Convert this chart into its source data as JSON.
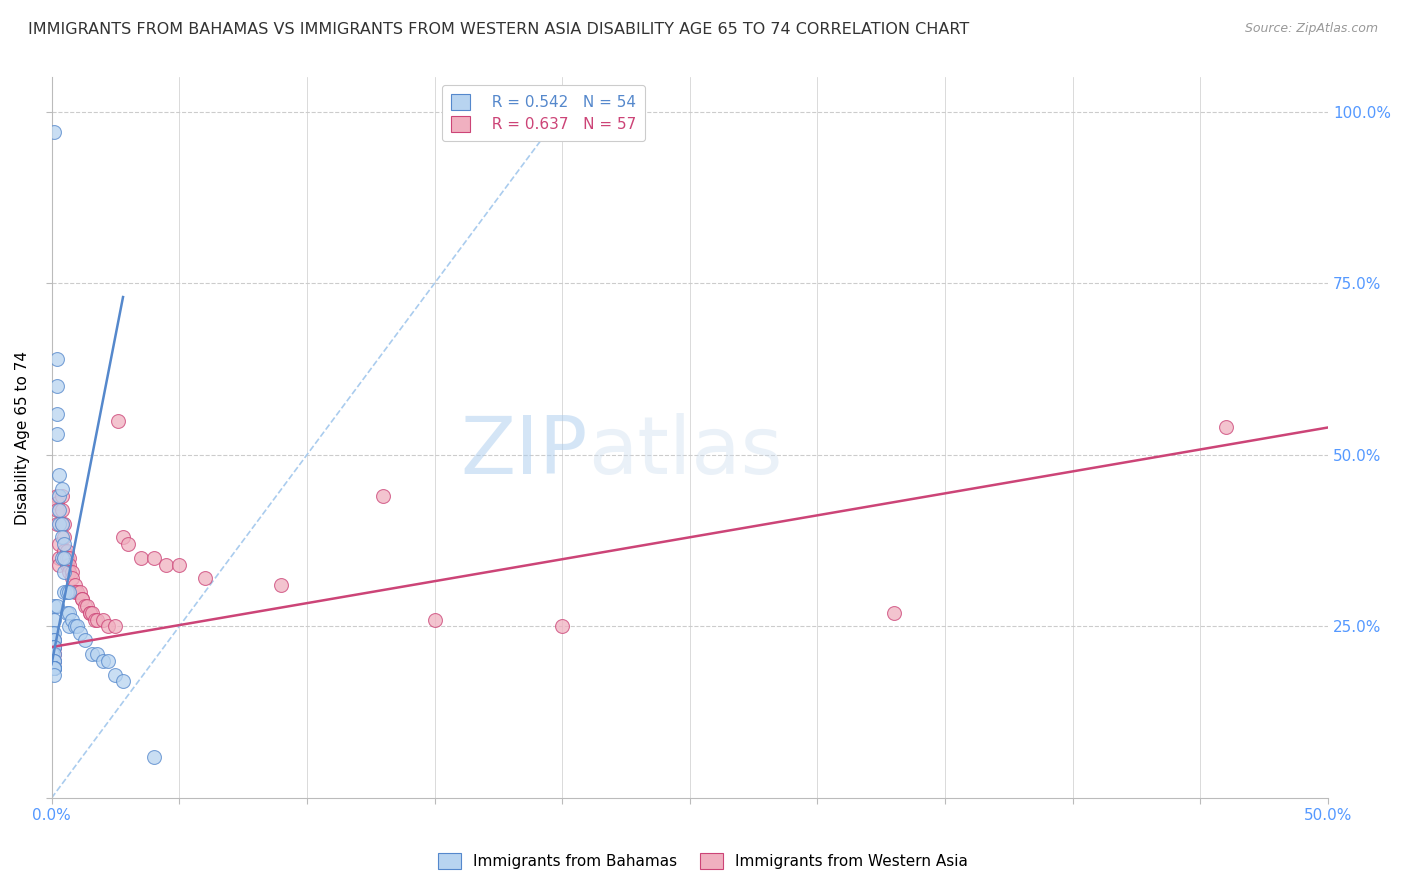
{
  "title": "IMMIGRANTS FROM BAHAMAS VS IMMIGRANTS FROM WESTERN ASIA DISABILITY AGE 65 TO 74 CORRELATION CHART",
  "source": "Source: ZipAtlas.com",
  "ylabel": "Disability Age 65 to 74",
  "legend_blue_R": "R = 0.542",
  "legend_blue_N": "N = 54",
  "legend_pink_R": "R = 0.637",
  "legend_pink_N": "N = 57",
  "legend_label_blue": "Immigrants from Bahamas",
  "legend_label_pink": "Immigrants from Western Asia",
  "blue_fill": "#b8d4f0",
  "blue_edge": "#5588cc",
  "pink_fill": "#f0b0c0",
  "pink_edge": "#cc4477",
  "dashed_line_color": "#aaccee",
  "grid_color": "#cccccc",
  "title_color": "#333333",
  "axis_label_color": "#5599ff",
  "xlim": [
    0.0,
    0.5
  ],
  "ylim": [
    0.0,
    1.05
  ],
  "blue_scatter_x": [
    0.001,
    0.001,
    0.002,
    0.001,
    0.0,
    0.001,
    0.001,
    0.001,
    0.001,
    0.0,
    0.001,
    0.0,
    0.001,
    0.001,
    0.001,
    0.001,
    0.001,
    0.001,
    0.001,
    0.001,
    0.001,
    0.002,
    0.002,
    0.002,
    0.002,
    0.003,
    0.003,
    0.003,
    0.003,
    0.004,
    0.004,
    0.004,
    0.004,
    0.005,
    0.005,
    0.005,
    0.005,
    0.006,
    0.006,
    0.007,
    0.007,
    0.007,
    0.008,
    0.009,
    0.01,
    0.011,
    0.013,
    0.016,
    0.018,
    0.02,
    0.022,
    0.025,
    0.028,
    0.04
  ],
  "blue_scatter_y": [
    0.97,
    0.28,
    0.28,
    0.26,
    0.24,
    0.24,
    0.23,
    0.23,
    0.22,
    0.22,
    0.22,
    0.21,
    0.21,
    0.2,
    0.2,
    0.19,
    0.19,
    0.19,
    0.19,
    0.19,
    0.18,
    0.64,
    0.6,
    0.56,
    0.53,
    0.47,
    0.44,
    0.42,
    0.4,
    0.45,
    0.4,
    0.38,
    0.35,
    0.37,
    0.35,
    0.33,
    0.3,
    0.3,
    0.27,
    0.3,
    0.27,
    0.25,
    0.26,
    0.25,
    0.25,
    0.24,
    0.23,
    0.21,
    0.21,
    0.2,
    0.2,
    0.18,
    0.17,
    0.06
  ],
  "pink_scatter_x": [
    0.001,
    0.001,
    0.001,
    0.001,
    0.001,
    0.002,
    0.002,
    0.002,
    0.002,
    0.003,
    0.003,
    0.003,
    0.004,
    0.004,
    0.004,
    0.005,
    0.005,
    0.005,
    0.005,
    0.006,
    0.006,
    0.006,
    0.007,
    0.007,
    0.007,
    0.008,
    0.008,
    0.009,
    0.009,
    0.01,
    0.011,
    0.012,
    0.012,
    0.013,
    0.014,
    0.015,
    0.015,
    0.016,
    0.017,
    0.018,
    0.02,
    0.022,
    0.025,
    0.026,
    0.028,
    0.03,
    0.035,
    0.04,
    0.045,
    0.05,
    0.06,
    0.09,
    0.13,
    0.15,
    0.2,
    0.33,
    0.46
  ],
  "pink_scatter_y": [
    0.23,
    0.22,
    0.22,
    0.21,
    0.2,
    0.44,
    0.43,
    0.42,
    0.4,
    0.37,
    0.35,
    0.34,
    0.44,
    0.42,
    0.4,
    0.4,
    0.38,
    0.36,
    0.35,
    0.36,
    0.35,
    0.34,
    0.35,
    0.34,
    0.33,
    0.33,
    0.32,
    0.31,
    0.3,
    0.3,
    0.3,
    0.29,
    0.29,
    0.28,
    0.28,
    0.27,
    0.27,
    0.27,
    0.26,
    0.26,
    0.26,
    0.25,
    0.25,
    0.55,
    0.38,
    0.37,
    0.35,
    0.35,
    0.34,
    0.34,
    0.32,
    0.31,
    0.44,
    0.26,
    0.25,
    0.27,
    0.54
  ],
  "blue_trend_x": [
    0.0,
    0.028
  ],
  "blue_trend_y": [
    0.195,
    0.73
  ],
  "pink_trend_x": [
    0.0,
    0.5
  ],
  "pink_trend_y": [
    0.22,
    0.54
  ],
  "dashed_trend_x": [
    0.0,
    0.2
  ],
  "dashed_trend_y": [
    0.0,
    1.0
  ],
  "watermark_zip": "ZIP",
  "watermark_atlas": "atlas",
  "figsize": [
    14.06,
    8.92
  ],
  "dpi": 100
}
